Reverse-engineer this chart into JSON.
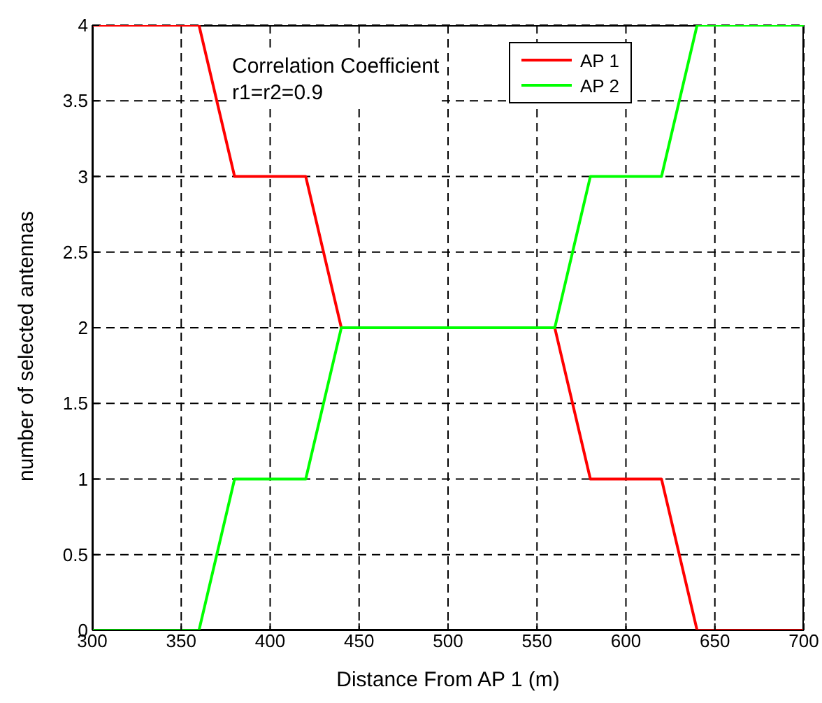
{
  "chart_data": {
    "type": "line",
    "xlabel": "Distance From AP 1 (m)",
    "ylabel": "number of selected antennas",
    "annotations": [
      "Correlation Coefficient",
      "r1=r2=0.9"
    ],
    "x": [
      300,
      360,
      380,
      420,
      440,
      560,
      580,
      620,
      640,
      700
    ],
    "series": [
      {
        "name": "AP 1",
        "color": "#ff0000",
        "values": [
          4,
          4,
          3,
          3,
          2,
          2,
          1,
          1,
          0,
          0
        ]
      },
      {
        "name": "AP 2",
        "color": "#00ff00",
        "values": [
          0,
          0,
          1,
          1,
          2,
          2,
          3,
          3,
          4,
          4
        ]
      }
    ],
    "xlim": [
      300,
      700
    ],
    "xticks": [
      300,
      350,
      400,
      450,
      500,
      550,
      600,
      650,
      700
    ],
    "ylim": [
      0,
      4
    ],
    "yticks": [
      0,
      0.5,
      1,
      1.5,
      2,
      2.5,
      3,
      3.5,
      4
    ],
    "grid": true,
    "legend": "top right",
    "marker": "none",
    "line_style": "solid"
  }
}
